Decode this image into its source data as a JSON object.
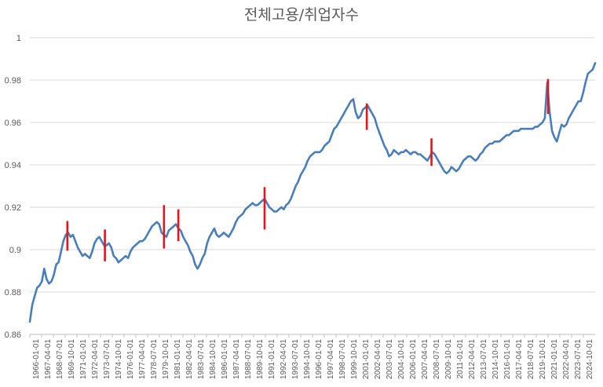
{
  "chart_data": {
    "type": "line",
    "title": "전체고용/취업자수",
    "xlabel": "",
    "ylabel": "",
    "ylim": [
      0.86,
      1.0
    ],
    "y_ticks": [
      "0.86",
      "0.88",
      "0.9",
      "0.92",
      "0.94",
      "0.96",
      "0.98",
      "1"
    ],
    "x_tick_labels": [
      "1966-01-01",
      "1967-04-01",
      "1968-07-01",
      "1969-10-01",
      "1971-01-01",
      "1972-04-01",
      "1973-07-01",
      "1974-10-01",
      "1976-01-01",
      "1977-04-01",
      "1978-07-01",
      "1979-10-01",
      "1981-01-01",
      "1982-04-01",
      "1983-07-01",
      "1984-10-01",
      "1986-01-01",
      "1987-04-01",
      "1988-07-01",
      "1989-10-01",
      "1991-01-01",
      "1992-04-01",
      "1993-07-01",
      "1994-10-01",
      "1996-01-01",
      "1997-04-01",
      "1998-07-01",
      "1999-10-01",
      "2001-01-01",
      "2002-04-01",
      "2003-07-01",
      "2004-10-01",
      "2006-01-01",
      "2007-04-01",
      "2008-07-01",
      "2009-10-01",
      "2011-01-01",
      "2012-04-01",
      "2013-07-01",
      "2014-10-01",
      "2016-01-01",
      "2017-04-01",
      "2018-07-01",
      "2019-10-01",
      "2021-01-01",
      "2022-04-01",
      "2023-07-01",
      "2024-10-01"
    ],
    "grid": "horizontal",
    "series": [
      {
        "color": "#4a7ebb",
        "points": [
          [
            "1966-01-01",
            0.866
          ],
          [
            "1966-04-01",
            0.874
          ],
          [
            "1966-07-01",
            0.878
          ],
          [
            "1966-10-01",
            0.882
          ],
          [
            "1967-01-01",
            0.883
          ],
          [
            "1967-04-01",
            0.885
          ],
          [
            "1967-07-01",
            0.891
          ],
          [
            "1967-10-01",
            0.886
          ],
          [
            "1968-01-01",
            0.884
          ],
          [
            "1968-04-01",
            0.885
          ],
          [
            "1968-07-01",
            0.888
          ],
          [
            "1968-10-01",
            0.893
          ],
          [
            "1969-01-01",
            0.894
          ],
          [
            "1969-04-01",
            0.899
          ],
          [
            "1969-07-01",
            0.904
          ],
          [
            "1969-10-01",
            0.907
          ],
          [
            "1970-01-01",
            0.908
          ],
          [
            "1970-04-01",
            0.906
          ],
          [
            "1970-07-01",
            0.907
          ],
          [
            "1970-10-01",
            0.904
          ],
          [
            "1971-01-01",
            0.901
          ],
          [
            "1971-04-01",
            0.899
          ],
          [
            "1971-07-01",
            0.897
          ],
          [
            "1971-10-01",
            0.898
          ],
          [
            "1972-01-01",
            0.897
          ],
          [
            "1972-04-01",
            0.896
          ],
          [
            "1972-07-01",
            0.899
          ],
          [
            "1972-10-01",
            0.903
          ],
          [
            "1973-01-01",
            0.905
          ],
          [
            "1973-04-01",
            0.906
          ],
          [
            "1973-07-01",
            0.904
          ],
          [
            "1973-10-01",
            0.902
          ],
          [
            "1974-01-01",
            0.902
          ],
          [
            "1974-04-01",
            0.903
          ],
          [
            "1974-07-01",
            0.901
          ],
          [
            "1974-10-01",
            0.897
          ],
          [
            "1975-01-01",
            0.896
          ],
          [
            "1975-04-01",
            0.894
          ],
          [
            "1975-07-01",
            0.895
          ],
          [
            "1975-10-01",
            0.896
          ],
          [
            "1976-01-01",
            0.897
          ],
          [
            "1976-04-01",
            0.896
          ],
          [
            "1976-07-01",
            0.899
          ],
          [
            "1976-10-01",
            0.901
          ],
          [
            "1977-01-01",
            0.902
          ],
          [
            "1977-04-01",
            0.903
          ],
          [
            "1977-07-01",
            0.904
          ],
          [
            "1977-10-01",
            0.904
          ],
          [
            "1978-01-01",
            0.905
          ],
          [
            "1978-04-01",
            0.907
          ],
          [
            "1978-07-01",
            0.909
          ],
          [
            "1978-10-01",
            0.911
          ],
          [
            "1979-01-01",
            0.912
          ],
          [
            "1979-04-01",
            0.913
          ],
          [
            "1979-07-01",
            0.912
          ],
          [
            "1979-10-01",
            0.908
          ],
          [
            "1980-01-01",
            0.907
          ],
          [
            "1980-04-01",
            0.906
          ],
          [
            "1980-07-01",
            0.909
          ],
          [
            "1980-10-01",
            0.91
          ],
          [
            "1981-01-01",
            0.911
          ],
          [
            "1981-04-01",
            0.912
          ],
          [
            "1981-07-01",
            0.91
          ],
          [
            "1981-10-01",
            0.909
          ],
          [
            "1982-01-01",
            0.906
          ],
          [
            "1982-04-01",
            0.904
          ],
          [
            "1982-07-01",
            0.902
          ],
          [
            "1982-10-01",
            0.899
          ],
          [
            "1983-01-01",
            0.897
          ],
          [
            "1983-04-01",
            0.893
          ],
          [
            "1983-07-01",
            0.891
          ],
          [
            "1983-10-01",
            0.893
          ],
          [
            "1984-01-01",
            0.896
          ],
          [
            "1984-04-01",
            0.898
          ],
          [
            "1984-07-01",
            0.903
          ],
          [
            "1984-10-01",
            0.906
          ],
          [
            "1985-01-01",
            0.908
          ],
          [
            "1985-04-01",
            0.91
          ],
          [
            "1985-07-01",
            0.907
          ],
          [
            "1985-10-01",
            0.906
          ],
          [
            "1986-01-01",
            0.907
          ],
          [
            "1986-04-01",
            0.908
          ],
          [
            "1986-07-01",
            0.907
          ],
          [
            "1986-10-01",
            0.906
          ],
          [
            "1987-01-01",
            0.908
          ],
          [
            "1987-04-01",
            0.91
          ],
          [
            "1987-07-01",
            0.913
          ],
          [
            "1987-10-01",
            0.915
          ],
          [
            "1988-01-01",
            0.916
          ],
          [
            "1988-04-01",
            0.917
          ],
          [
            "1988-07-01",
            0.919
          ],
          [
            "1988-10-01",
            0.92
          ],
          [
            "1989-01-01",
            0.921
          ],
          [
            "1989-04-01",
            0.922
          ],
          [
            "1989-07-01",
            0.921
          ],
          [
            "1989-10-01",
            0.921
          ],
          [
            "1990-01-01",
            0.922
          ],
          [
            "1990-04-01",
            0.923
          ],
          [
            "1990-07-01",
            0.924
          ],
          [
            "1990-10-01",
            0.922
          ],
          [
            "1991-01-01",
            0.92
          ],
          [
            "1991-04-01",
            0.919
          ],
          [
            "1991-07-01",
            0.918
          ],
          [
            "1991-10-01",
            0.918
          ],
          [
            "1992-01-01",
            0.919
          ],
          [
            "1992-04-01",
            0.92
          ],
          [
            "1992-07-01",
            0.919
          ],
          [
            "1992-10-01",
            0.921
          ],
          [
            "1993-01-01",
            0.922
          ],
          [
            "1993-04-01",
            0.924
          ],
          [
            "1993-07-01",
            0.927
          ],
          [
            "1993-10-01",
            0.93
          ],
          [
            "1994-01-01",
            0.932
          ],
          [
            "1994-04-01",
            0.935
          ],
          [
            "1994-07-01",
            0.937
          ],
          [
            "1994-10-01",
            0.939
          ],
          [
            "1995-01-01",
            0.942
          ],
          [
            "1995-04-01",
            0.944
          ],
          [
            "1995-07-01",
            0.945
          ],
          [
            "1995-10-01",
            0.946
          ],
          [
            "1996-01-01",
            0.946
          ],
          [
            "1996-04-01",
            0.946
          ],
          [
            "1996-07-01",
            0.947
          ],
          [
            "1996-10-01",
            0.949
          ],
          [
            "1997-01-01",
            0.95
          ],
          [
            "1997-04-01",
            0.951
          ],
          [
            "1997-07-01",
            0.954
          ],
          [
            "1997-10-01",
            0.957
          ],
          [
            "1998-01-01",
            0.958
          ],
          [
            "1998-04-01",
            0.96
          ],
          [
            "1998-07-01",
            0.962
          ],
          [
            "1998-10-01",
            0.964
          ],
          [
            "1999-01-01",
            0.966
          ],
          [
            "1999-04-01",
            0.968
          ],
          [
            "1999-07-01",
            0.97
          ],
          [
            "1999-10-01",
            0.971
          ],
          [
            "2000-01-01",
            0.965
          ],
          [
            "2000-04-01",
            0.962
          ],
          [
            "2000-07-01",
            0.963
          ],
          [
            "2000-10-01",
            0.966
          ],
          [
            "2001-01-01",
            0.967
          ],
          [
            "2001-04-01",
            0.968
          ],
          [
            "2001-07-01",
            0.966
          ],
          [
            "2001-10-01",
            0.964
          ],
          [
            "2002-01-01",
            0.962
          ],
          [
            "2002-04-01",
            0.958
          ],
          [
            "2002-07-01",
            0.955
          ],
          [
            "2002-10-01",
            0.952
          ],
          [
            "2003-01-01",
            0.949
          ],
          [
            "2003-04-01",
            0.947
          ],
          [
            "2003-07-01",
            0.944
          ],
          [
            "2003-10-01",
            0.945
          ],
          [
            "2004-01-01",
            0.947
          ],
          [
            "2004-04-01",
            0.946
          ],
          [
            "2004-07-01",
            0.945
          ],
          [
            "2004-10-01",
            0.946
          ],
          [
            "2005-01-01",
            0.946
          ],
          [
            "2005-04-01",
            0.947
          ],
          [
            "2005-07-01",
            0.946
          ],
          [
            "2005-10-01",
            0.945
          ],
          [
            "2006-01-01",
            0.946
          ],
          [
            "2006-04-01",
            0.946
          ],
          [
            "2006-07-01",
            0.945
          ],
          [
            "2006-10-01",
            0.945
          ],
          [
            "2007-01-01",
            0.944
          ],
          [
            "2007-04-01",
            0.943
          ],
          [
            "2007-07-01",
            0.942
          ],
          [
            "2007-10-01",
            0.944
          ],
          [
            "2008-01-01",
            0.946
          ],
          [
            "2008-04-01",
            0.945
          ],
          [
            "2008-07-01",
            0.943
          ],
          [
            "2008-10-01",
            0.941
          ],
          [
            "2009-01-01",
            0.939
          ],
          [
            "2009-04-01",
            0.937
          ],
          [
            "2009-07-01",
            0.936
          ],
          [
            "2009-10-01",
            0.937
          ],
          [
            "2010-01-01",
            0.939
          ],
          [
            "2010-04-01",
            0.938
          ],
          [
            "2010-07-01",
            0.937
          ],
          [
            "2010-10-01",
            0.938
          ],
          [
            "2011-01-01",
            0.94
          ],
          [
            "2011-04-01",
            0.942
          ],
          [
            "2011-07-01",
            0.943
          ],
          [
            "2011-10-01",
            0.944
          ],
          [
            "2012-01-01",
            0.944
          ],
          [
            "2012-04-01",
            0.943
          ],
          [
            "2012-07-01",
            0.942
          ],
          [
            "2012-10-01",
            0.943
          ],
          [
            "2013-01-01",
            0.945
          ],
          [
            "2013-04-01",
            0.946
          ],
          [
            "2013-07-01",
            0.948
          ],
          [
            "2013-10-01",
            0.949
          ],
          [
            "2014-01-01",
            0.95
          ],
          [
            "2014-04-01",
            0.95
          ],
          [
            "2014-07-01",
            0.951
          ],
          [
            "2014-10-01",
            0.951
          ],
          [
            "2015-01-01",
            0.951
          ],
          [
            "2015-04-01",
            0.952
          ],
          [
            "2015-07-01",
            0.953
          ],
          [
            "2015-10-01",
            0.954
          ],
          [
            "2016-01-01",
            0.954
          ],
          [
            "2016-04-01",
            0.955
          ],
          [
            "2016-07-01",
            0.956
          ],
          [
            "2016-10-01",
            0.956
          ],
          [
            "2017-01-01",
            0.956
          ],
          [
            "2017-04-01",
            0.957
          ],
          [
            "2017-07-01",
            0.957
          ],
          [
            "2017-10-01",
            0.957
          ],
          [
            "2018-01-01",
            0.957
          ],
          [
            "2018-04-01",
            0.957
          ],
          [
            "2018-07-01",
            0.957
          ],
          [
            "2018-10-01",
            0.958
          ],
          [
            "2019-01-01",
            0.958
          ],
          [
            "2019-04-01",
            0.959
          ],
          [
            "2019-07-01",
            0.96
          ],
          [
            "2019-10-01",
            0.962
          ],
          [
            "2020-01-01",
            0.979
          ],
          [
            "2020-04-01",
            0.965
          ],
          [
            "2020-07-01",
            0.956
          ],
          [
            "2020-10-01",
            0.953
          ],
          [
            "2021-01-01",
            0.951
          ],
          [
            "2021-04-01",
            0.955
          ],
          [
            "2021-07-01",
            0.959
          ],
          [
            "2021-10-01",
            0.958
          ],
          [
            "2022-01-01",
            0.959
          ],
          [
            "2022-04-01",
            0.962
          ],
          [
            "2022-07-01",
            0.964
          ],
          [
            "2022-10-01",
            0.966
          ],
          [
            "2023-01-01",
            0.968
          ],
          [
            "2023-04-01",
            0.97
          ],
          [
            "2023-07-01",
            0.97
          ],
          [
            "2023-10-01",
            0.974
          ],
          [
            "2024-01-01",
            0.979
          ],
          [
            "2024-04-01",
            0.983
          ],
          [
            "2024-07-01",
            0.984
          ],
          [
            "2024-10-01",
            0.985
          ],
          [
            "2025-01-01",
            0.988
          ]
        ]
      }
    ],
    "markers": {
      "color": "#e3141c",
      "items": [
        {
          "x": "1969-12-01",
          "y_top": 0.9135,
          "y_bottom": 0.8995
        },
        {
          "x": "1973-11-01",
          "y_top": 0.9095,
          "y_bottom": 0.8945
        },
        {
          "x": "1980-01-01",
          "y_top": 0.921,
          "y_bottom": 0.9005
        },
        {
          "x": "1981-07-01",
          "y_top": 0.919,
          "y_bottom": 0.904
        },
        {
          "x": "1990-07-01",
          "y_top": 0.9295,
          "y_bottom": 0.9095
        },
        {
          "x": "2001-03-01",
          "y_top": 0.969,
          "y_bottom": 0.9565
        },
        {
          "x": "2007-12-01",
          "y_top": 0.9525,
          "y_bottom": 0.9395
        },
        {
          "x": "2020-02-01",
          "y_top": 0.9805,
          "y_bottom": 0.964
        }
      ]
    }
  }
}
